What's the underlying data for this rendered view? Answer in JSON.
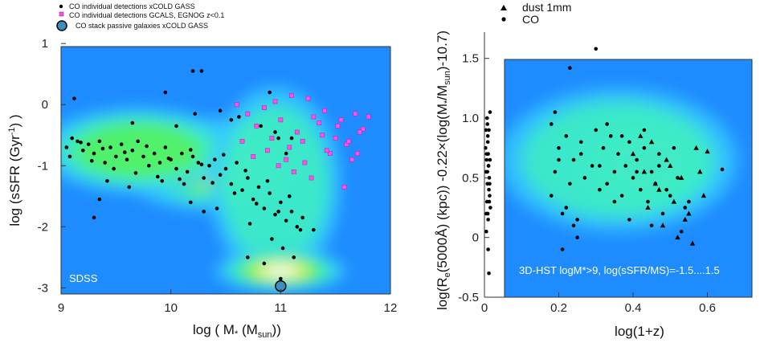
{
  "chart_data": [
    {
      "type": "scatter",
      "panel": "left",
      "xlabel": "log ( M* (Msun))",
      "ylabel": "log (sSFR (Gyr^-1) )",
      "xlim": [
        9,
        12
      ],
      "ylim": [
        -3.1,
        0.95
      ],
      "xticks": [
        "9",
        "10",
        "11",
        "12"
      ],
      "yticks": [
        "1",
        "0",
        "-1",
        "-2",
        "-3"
      ],
      "inset_label": "SDSS",
      "legend": [
        {
          "symbol": "black-dot",
          "label": "CO individual detections xCOLD GASS"
        },
        {
          "symbol": "magenta-square",
          "label": "CO individual detections GCALS, EGNOG z<0.1"
        },
        {
          "symbol": "blue-circle",
          "label": "CO stack passive galaxies xCOLD GASS"
        }
      ],
      "density_background": [
        {
          "x": 10.35,
          "y": -0.98,
          "sx": 0.42,
          "sy": 0.38,
          "level": 0.75
        },
        {
          "x": 9.7,
          "y": -0.75,
          "sx": 0.45,
          "sy": 0.35,
          "level": 0.45
        },
        {
          "x": 10.95,
          "y": -1.3,
          "sx": 0.3,
          "sy": 0.8,
          "level": 0.3
        },
        {
          "x": 11.0,
          "y": -2.72,
          "sx": 0.3,
          "sy": 0.17,
          "level": 1.0
        }
      ],
      "series": [
        {
          "name": "CO individual detections xCOLD GASS",
          "x": [
            9.05,
            9.1,
            9.12,
            9.15,
            9.2,
            9.25,
            9.3,
            9.35,
            9.4,
            9.45,
            9.5,
            9.55,
            9.6,
            9.65,
            9.7,
            9.75,
            9.8,
            9.85,
            9.9,
            9.95,
            10.0,
            10.05,
            10.1,
            10.15,
            10.2,
            10.25,
            10.3,
            10.35,
            10.4,
            10.45,
            10.5,
            10.55,
            10.6,
            10.65,
            10.7,
            10.75,
            10.8,
            10.85,
            10.9,
            10.95,
            11.0,
            11.05,
            11.1,
            11.15,
            11.2,
            9.08,
            9.18,
            9.28,
            9.38,
            9.48,
            9.58,
            9.68,
            9.78,
            9.88,
            9.98,
            10.08,
            10.18,
            10.28,
            10.38,
            10.48,
            10.58,
            10.68,
            10.78,
            10.88,
            10.98,
            11.08,
            11.18,
            9.35,
            9.62,
            9.92,
            10.12,
            10.42,
            10.72,
            10.92,
            11.02,
            11.12,
            10.05,
            10.22,
            10.45,
            10.62,
            10.82,
            10.95,
            11.1,
            11.3,
            10.7,
            10.85,
            11.0,
            10.2,
            10.28,
            9.3,
            9.42,
            9.95,
            10.55,
            10.9,
            10.98,
            11.05,
            10.18,
            10.3,
            9.65
          ],
          "y": [
            -0.7,
            -0.55,
            0.1,
            -0.6,
            -0.75,
            -0.65,
            -0.8,
            -0.6,
            -0.95,
            -0.7,
            -0.85,
            -0.65,
            -0.9,
            -0.75,
            -0.6,
            -0.85,
            -1.0,
            -0.8,
            -0.95,
            -0.7,
            -0.9,
            -1.05,
            -0.8,
            -1.1,
            -0.85,
            -0.95,
            -1.2,
            -1.0,
            -0.9,
            -1.15,
            -1.05,
            -1.3,
            -0.95,
            -1.4,
            -1.2,
            -1.55,
            -1.35,
            -1.7,
            -1.45,
            -1.8,
            -1.6,
            -1.9,
            -1.75,
            -2.0,
            -1.85,
            -0.85,
            -0.62,
            -0.92,
            -0.72,
            -1.05,
            -0.78,
            -1.12,
            -0.68,
            -1.18,
            -0.88,
            -1.22,
            -0.74,
            -0.98,
            -1.28,
            -0.82,
            -1.45,
            -1.08,
            -1.62,
            -1.25,
            -1.75,
            -1.5,
            -2.05,
            -1.55,
            -1.35,
            -1.25,
            -1.3,
            -1.7,
            -1.95,
            -2.2,
            -2.35,
            -2.5,
            -0.35,
            -0.15,
            -0.1,
            -0.2,
            -0.35,
            -0.45,
            -0.55,
            -2.05,
            -2.5,
            -2.6,
            -2.85,
            0.55,
            0.55,
            -1.85,
            -1.25,
            0.2,
            -0.25,
            0.2,
            -0.55,
            -0.8,
            -1.6,
            -1.75,
            -0.3
          ]
        },
        {
          "name": "CO individual detections GCALS, EGNOG z<0.1",
          "x": [
            10.6,
            10.7,
            10.78,
            10.85,
            10.92,
            11.0,
            11.08,
            11.15,
            11.22,
            11.3,
            11.38,
            11.45,
            11.52,
            11.6,
            11.68,
            11.75,
            10.65,
            10.75,
            10.88,
            10.98,
            11.05,
            11.12,
            11.2,
            11.28,
            11.35,
            11.42,
            11.5,
            11.58,
            11.65,
            11.72,
            11.8,
            10.95,
            11.1,
            11.25,
            11.4,
            11.55,
            11.62,
            11.7
          ],
          "y": [
            0.0,
            -0.15,
            -0.35,
            -0.05,
            -0.55,
            -0.25,
            -0.7,
            -0.45,
            -0.95,
            -0.2,
            -0.5,
            -0.8,
            -0.35,
            -0.65,
            -0.15,
            -0.4,
            -0.6,
            -0.85,
            -0.75,
            -1.0,
            -0.9,
            -1.1,
            -0.6,
            -1.2,
            -0.3,
            -0.75,
            -0.55,
            -1.35,
            -0.9,
            -0.45,
            -0.2,
            0.05,
            0.15,
            0.1,
            -0.1,
            -0.25,
            -0.6,
            -0.8
          ]
        },
        {
          "name": "CO stack passive galaxies xCOLD GASS",
          "x": [
            11.0
          ],
          "y": [
            -2.97
          ]
        }
      ]
    },
    {
      "type": "scatter",
      "panel": "right",
      "xlabel": "log(1+z)",
      "ylabel": "log(Re(5000Å) (kpc)) -0.22×(log(M*/Msun)-10.7)",
      "xlim": [
        0,
        0.72
      ],
      "ylim": [
        -0.5,
        1.72
      ],
      "xticks": [
        "0",
        "0.2",
        "0.4",
        "0.6"
      ],
      "yticks": [
        "1.5",
        "1.0",
        "0.5",
        "0",
        "-0.5"
      ],
      "inset_label": "3D-HST  logM*>9, log(sSFR/MS)=-1.5....1.5",
      "legend": [
        {
          "symbol": "triangle",
          "label": "dust 1mm"
        },
        {
          "symbol": "dot",
          "label": "CO"
        }
      ],
      "density_background": [
        {
          "x": 0.44,
          "y": 0.62,
          "sx": 0.1,
          "sy": 0.22,
          "level": 1.0
        },
        {
          "x": 0.36,
          "y": 0.65,
          "sx": 0.16,
          "sy": 0.3,
          "level": 0.35
        }
      ],
      "series": [
        {
          "name": "CO",
          "x": [
            0.005,
            0.008,
            0.01,
            0.012,
            0.015,
            0.004,
            0.007,
            0.009,
            0.011,
            0.014,
            0.006,
            0.01,
            0.013,
            0.003,
            0.008,
            0.012,
            0.016,
            0.005,
            0.009,
            0.011,
            0.014,
            0.007,
            0.01,
            0.006,
            0.013,
            0.008,
            0.012,
            0.004,
            0.009,
            0.015,
            0.18,
            0.19,
            0.2,
            0.21,
            0.22,
            0.23,
            0.24,
            0.25,
            0.26,
            0.27,
            0.3,
            0.31,
            0.32,
            0.33,
            0.34,
            0.35,
            0.36,
            0.37,
            0.38,
            0.39,
            0.4,
            0.41,
            0.42,
            0.43,
            0.44,
            0.45,
            0.46,
            0.47,
            0.48,
            0.5,
            0.52,
            0.54,
            0.18,
            0.2,
            0.22,
            0.24,
            0.26,
            0.29,
            0.31,
            0.33,
            0.35,
            0.37,
            0.39,
            0.41,
            0.43,
            0.45,
            0.47,
            0.49,
            0.51,
            0.53,
            0.55,
            0.23,
            0.3,
            0.21,
            0.25,
            0.19,
            0.64
          ],
          "y": [
            0.2,
            0.45,
            0.7,
            0.9,
            1.05,
            0.55,
            0.3,
            0.8,
            0.6,
            0.35,
            0.65,
            0.15,
            0.5,
            0.75,
            0.95,
            0.4,
            0.25,
            0.05,
            0.85,
            0.6,
            0.45,
            1.0,
            -0.1,
            0.7,
            0.3,
            0.55,
            -0.3,
            0.9,
            0.2,
            0.65,
            0.35,
            0.55,
            0.75,
            0.2,
            0.85,
            0.45,
            0.65,
            0.15,
            0.8,
            0.5,
            0.9,
            0.6,
            0.75,
            0.45,
            0.85,
            0.55,
            0.7,
            0.35,
            0.6,
            0.8,
            0.5,
            0.65,
            0.4,
            0.75,
            0.3,
            0.55,
            0.45,
            0.7,
            0.2,
            0.35,
            0.5,
            0.25,
            0.95,
            0.65,
            0.25,
            0.1,
            0.7,
            0.6,
            0.4,
            0.95,
            0.3,
            0.85,
            0.15,
            0.55,
            0.9,
            0.1,
            0.6,
            0.4,
            0.75,
            0.05,
            0.3,
            1.42,
            1.58,
            -0.1,
            0.0,
            1.05,
            0.57
          ]
        },
        {
          "name": "dust 1mm",
          "x": [
            0.4,
            0.43,
            0.45,
            0.47,
            0.49,
            0.51,
            0.53,
            0.55,
            0.57,
            0.59,
            0.44,
            0.48,
            0.52,
            0.56,
            0.42,
            0.5,
            0.54,
            0.58,
            0.46,
            0.6
          ],
          "y": [
            0.7,
            0.55,
            0.8,
            0.4,
            0.65,
            0.3,
            0.5,
            0.2,
            0.75,
            0.35,
            0.25,
            0.1,
            0.0,
            -0.05,
            0.85,
            0.6,
            0.15,
            0.55,
            0.45,
            0.72
          ]
        }
      ]
    }
  ]
}
